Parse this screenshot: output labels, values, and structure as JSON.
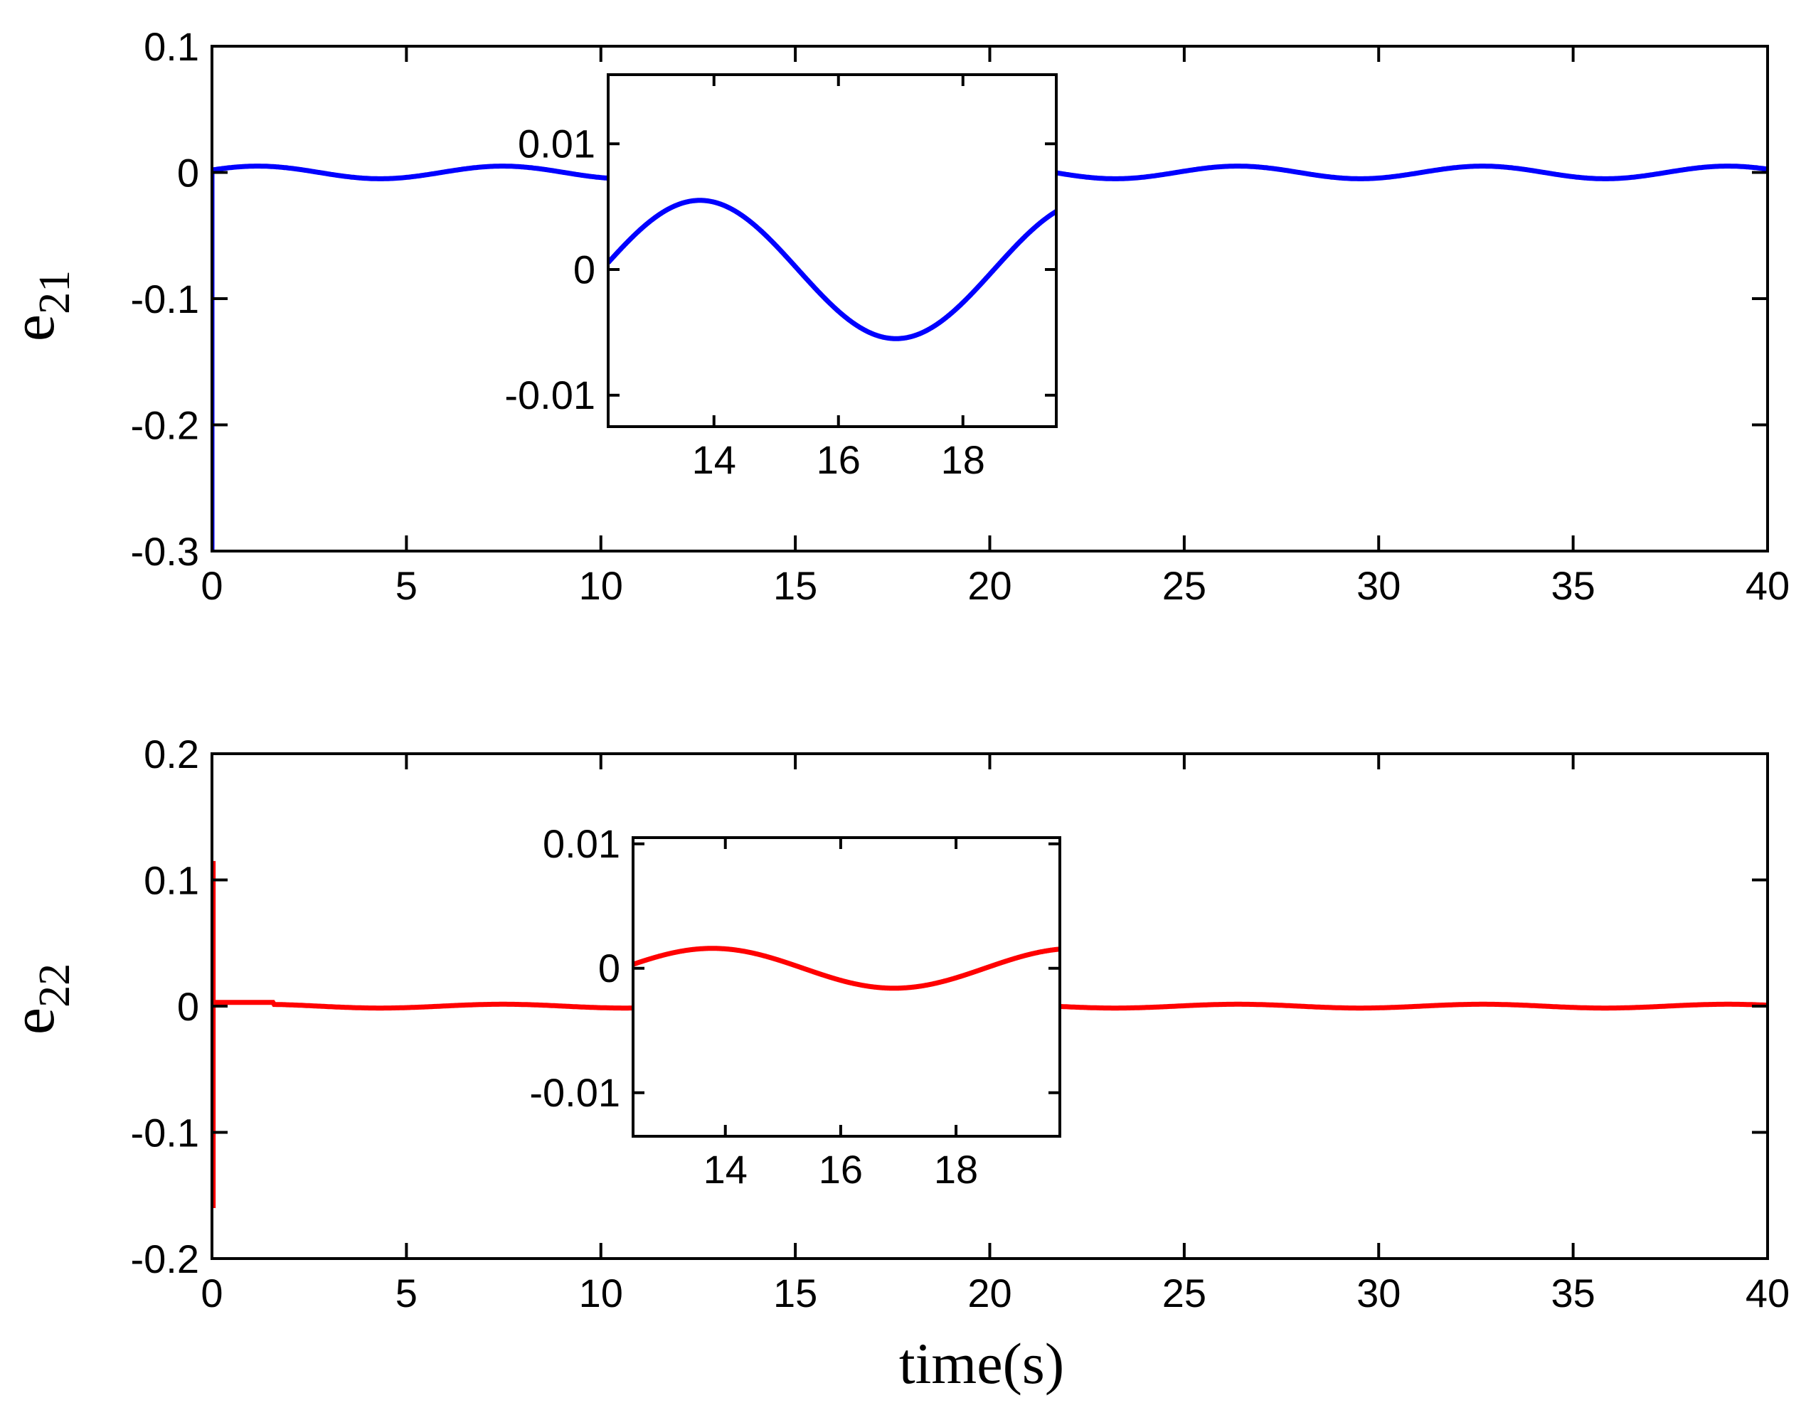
{
  "chart_data": [
    {
      "type": "line",
      "id": "e21-main",
      "ylabel": "e",
      "ylabel_sub": "21",
      "xlabel": "",
      "xlim": [
        0,
        40
      ],
      "ylim": [
        -0.3,
        0.1
      ],
      "xticks": [
        0,
        5,
        10,
        15,
        20,
        25,
        30,
        35,
        40
      ],
      "xtick_labels": [
        "0",
        "5",
        "10",
        "15",
        "20",
        "25",
        "30",
        "35",
        "40"
      ],
      "yticks": [
        0.1,
        0,
        -0.1,
        -0.2,
        -0.3
      ],
      "ytick_labels": [
        "0.1",
        "0",
        "-0.1",
        "-0.2",
        "-0.3"
      ],
      "series": [
        {
          "name": "e21",
          "color": "#0000ff",
          "initial_value": -0.3,
          "amplitude": 0.005,
          "period": 6.3,
          "phase_zero": 12.2,
          "x_range": [
            0,
            40
          ]
        }
      ]
    },
    {
      "type": "line",
      "id": "e21-inset",
      "xlim": [
        12.3,
        19.5
      ],
      "ylim": [
        -0.0125,
        0.0155
      ],
      "xticks": [
        14,
        16,
        18
      ],
      "xtick_labels": [
        "14",
        "16",
        "18"
      ],
      "yticks": [
        0.01,
        0,
        -0.01
      ],
      "ytick_labels": [
        "0.01",
        "0",
        "-0.01"
      ],
      "series": [
        {
          "name": "e21 zoom",
          "color": "#0000ff",
          "amplitude": 0.0055,
          "period": 6.3,
          "phase_zero": 12.2,
          "x_range": [
            12.3,
            19.5
          ]
        }
      ]
    },
    {
      "type": "line",
      "id": "e22-main",
      "ylabel": "e",
      "ylabel_sub": "22",
      "xlabel": "time(s)",
      "xlim": [
        0,
        40
      ],
      "ylim": [
        -0.2,
        0.2
      ],
      "xticks": [
        0,
        5,
        10,
        15,
        20,
        25,
        30,
        35,
        40
      ],
      "xtick_labels": [
        "0",
        "5",
        "10",
        "15",
        "20",
        "25",
        "30",
        "35",
        "40"
      ],
      "yticks": [
        0.2,
        0.1,
        0,
        -0.1,
        -0.2
      ],
      "ytick_labels": [
        "0.2",
        "0.1",
        "0",
        "-0.1",
        "-0.2"
      ],
      "series": [
        {
          "name": "e22",
          "color": "#ff0000",
          "initial_spike_high": 0.115,
          "initial_spike_low": -0.16,
          "early_offset": 0.003,
          "early_offset_end": 1.6,
          "amplitude": 0.0015,
          "period": 6.3,
          "phase_zero": 12.2,
          "x_range": [
            0,
            40
          ]
        }
      ]
    },
    {
      "type": "line",
      "id": "e22-inset",
      "xlim": [
        12.4,
        19.8
      ],
      "ylim": [
        -0.0135,
        0.0105
      ],
      "xticks": [
        14,
        16,
        18
      ],
      "xtick_labels": [
        "14",
        "16",
        "18"
      ],
      "yticks": [
        0.01,
        0,
        -0.01
      ],
      "ytick_labels": [
        "0.01",
        "0",
        "-0.01"
      ],
      "series": [
        {
          "name": "e22 zoom",
          "color": "#ff0000",
          "amplitude": 0.0016,
          "period": 6.3,
          "phase_zero": 12.2,
          "x_range": [
            12.4,
            19.8
          ]
        }
      ]
    }
  ]
}
